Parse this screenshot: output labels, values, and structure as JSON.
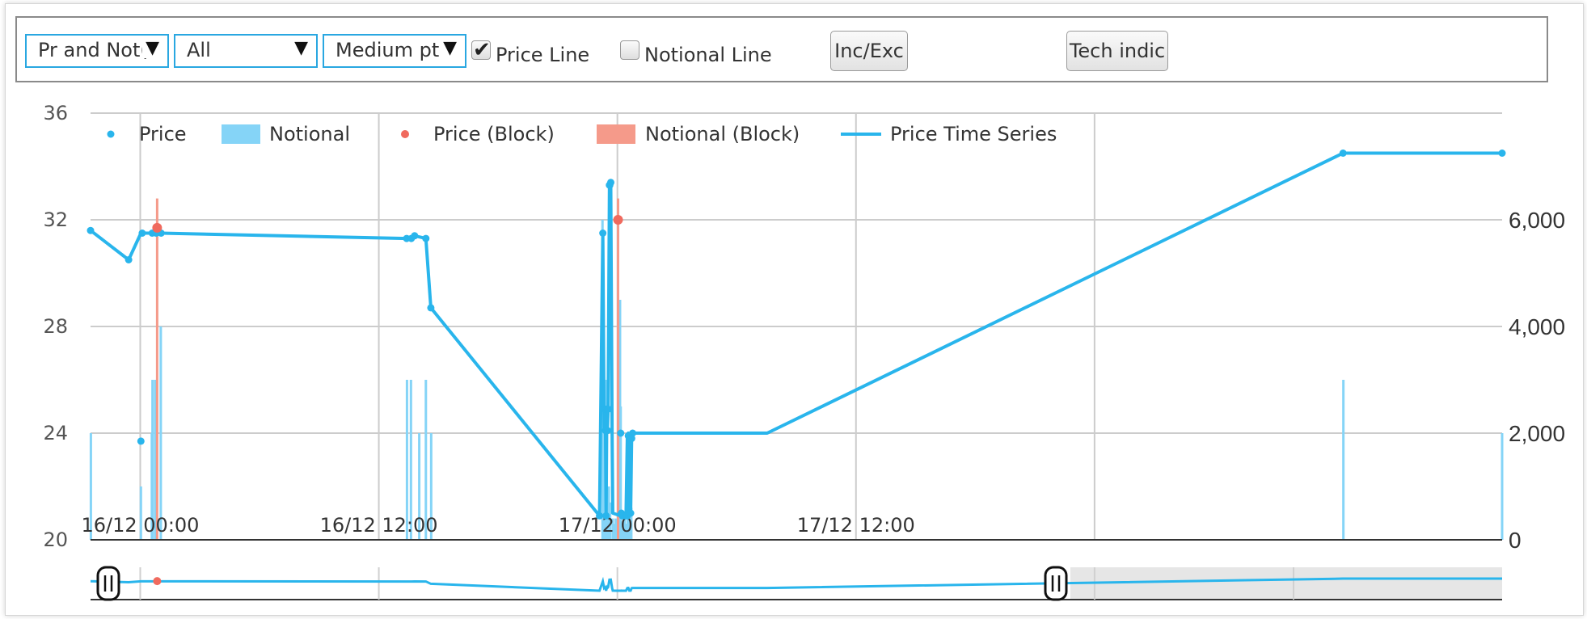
{
  "toolbar": {
    "dropdown_mode": "Pr and Not(l",
    "dropdown_filter": "All",
    "dropdown_points": "Medium pts",
    "price_line_label": "Price Line",
    "price_line_checked": true,
    "notional_line_label": "Notional Line",
    "notional_line_checked": false,
    "inc_exc_label": "Inc/Exc",
    "tech_indic_label": "Tech indic",
    "arrow_glyph": "▼",
    "check_glyph": "✔"
  },
  "colors": {
    "price": "#29b5ec",
    "notional": "#85d4f7",
    "price_block": "#f06a5e",
    "notional_block": "#f59a8a",
    "grid": "#cccccc"
  },
  "chart_data": {
    "type": "line",
    "title": "",
    "xlabel": "",
    "ylabel": "",
    "y_left": {
      "min": 20,
      "max": 36,
      "ticks": [
        "36",
        "32",
        "28",
        "24",
        "20"
      ]
    },
    "y_right": {
      "min": 0,
      "max": 8000,
      "ticks": [
        "6,000",
        "4,000",
        "2,000",
        "0"
      ]
    },
    "x_range": [
      "2015-12-15T21:30",
      "2015-12-18T20:30"
    ],
    "x_ticks": [
      {
        "t": "2015-12-16T00:00",
        "label": "16/12 00:00"
      },
      {
        "t": "2015-12-16T12:00",
        "label": "16/12 12:00"
      },
      {
        "t": "2015-12-17T00:00",
        "label": "17/12 00:00"
      },
      {
        "t": "2015-12-17T12:00",
        "label": "17/12 12:00"
      }
    ],
    "grid": true,
    "legend": {
      "position": "top-left",
      "entries": [
        "Price",
        "Notional",
        "Price (Block)",
        "Notional (Block)",
        "Price Time Series"
      ]
    },
    "series": [
      {
        "name": "Price Time Series",
        "kind": "line",
        "x": [
          "2015-12-15T21:30",
          "2015-12-15T23:25",
          "2015-12-16T00:02",
          "2015-12-16T00:06",
          "2015-12-16T00:36",
          "2015-12-16T00:48",
          "2015-12-16T00:51",
          "2015-12-16T01:03",
          "2015-12-16T13:24",
          "2015-12-16T13:38",
          "2015-12-16T13:48",
          "2015-12-16T14:22",
          "2015-12-16T14:37",
          "2015-12-16T23:06",
          "2015-12-16T23:16",
          "2015-12-16T23:20",
          "2015-12-16T23:22",
          "2015-12-16T23:24",
          "2015-12-16T23:26",
          "2015-12-16T23:28",
          "2015-12-16T23:30",
          "2015-12-16T23:32",
          "2015-12-16T23:36",
          "2015-12-16T23:37",
          "2015-12-16T23:40",
          "2015-12-16T23:44",
          "2015-12-16T23:46",
          "2015-12-17T00:10",
          "2015-12-17T00:12",
          "2015-12-17T00:15",
          "2015-12-17T00:25",
          "2015-12-17T00:26",
          "2015-12-17T00:30",
          "2015-12-17T00:33",
          "2015-12-17T00:36",
          "2015-12-17T00:40",
          "2015-12-17T00:43",
          "2015-12-17T00:46",
          "2015-12-17T07:32",
          "2015-12-18T12:30",
          "2015-12-18T20:30"
        ],
        "values": [
          31.6,
          30.5,
          31.5,
          31.5,
          31.5,
          31.5,
          31.5,
          31.5,
          31.3,
          31.3,
          31.4,
          31.3,
          28.7,
          20.9,
          31.5,
          24.1,
          24.9,
          24.1,
          20.9,
          24.9,
          24.1,
          24.9,
          33.3,
          33.3,
          33.4,
          24.0,
          21.0,
          20.9,
          21.0,
          20.9,
          20.9,
          20.9,
          23.9,
          24.0,
          21.0,
          21.0,
          23.8,
          24.0,
          24.0,
          34.5,
          34.5
        ]
      },
      {
        "name": "Price",
        "kind": "points",
        "x": [
          "2015-12-15T21:30",
          "2015-12-15T23:25",
          "2015-12-16T00:02",
          "2015-12-16T00:06",
          "2015-12-16T00:36",
          "2015-12-16T00:48",
          "2015-12-16T01:03",
          "2015-12-16T13:24",
          "2015-12-16T13:38",
          "2015-12-16T13:48",
          "2015-12-16T14:22",
          "2015-12-16T14:37",
          "2015-12-16T23:06",
          "2015-12-16T23:16",
          "2015-12-16T23:22",
          "2015-12-16T23:24",
          "2015-12-16T23:26",
          "2015-12-16T23:28",
          "2015-12-16T23:30",
          "2015-12-16T23:32",
          "2015-12-16T23:36",
          "2015-12-16T23:37",
          "2015-12-16T23:40",
          "2015-12-17T00:10",
          "2015-12-17T00:12",
          "2015-12-17T00:15",
          "2015-12-17T00:25",
          "2015-12-17T00:30",
          "2015-12-17T00:33",
          "2015-12-17T00:40",
          "2015-12-17T00:43",
          "2015-12-17T00:46",
          "2015-12-18T12:30",
          "2015-12-18T20:30"
        ],
        "values": [
          31.6,
          30.5,
          23.7,
          31.5,
          31.5,
          31.5,
          31.5,
          31.3,
          31.3,
          31.4,
          31.3,
          28.7,
          20.9,
          31.5,
          24.9,
          24.1,
          20.9,
          24.9,
          24.1,
          24.9,
          33.3,
          33.3,
          33.4,
          24.0,
          21.0,
          20.9,
          20.9,
          20.9,
          23.9,
          21.0,
          23.8,
          24.0,
          34.5,
          34.5
        ]
      },
      {
        "name": "Price (Block)",
        "kind": "points",
        "x": [
          "2015-12-16T00:51",
          "2015-12-17T00:02"
        ],
        "values": [
          31.7,
          32.0
        ]
      },
      {
        "name": "Notional",
        "kind": "bars",
        "x": [
          "2015-12-15T21:31",
          "2015-12-16T00:02",
          "2015-12-16T00:35",
          "2015-12-16T00:37",
          "2015-12-16T00:45",
          "2015-12-16T01:02",
          "2015-12-16T13:25",
          "2015-12-16T13:37",
          "2015-12-16T14:02",
          "2015-12-16T14:22",
          "2015-12-16T14:38",
          "2015-12-16T23:15",
          "2015-12-16T23:19",
          "2015-12-16T23:23",
          "2015-12-16T23:27",
          "2015-12-16T23:31",
          "2015-12-16T23:34",
          "2015-12-16T23:38",
          "2015-12-16T23:46",
          "2015-12-16T23:50",
          "2015-12-16T23:55",
          "2015-12-17T00:04",
          "2015-12-17T00:08",
          "2015-12-17T00:10",
          "2015-12-17T00:13",
          "2015-12-17T00:18",
          "2015-12-17T00:22",
          "2015-12-17T00:25",
          "2015-12-17T00:31",
          "2015-12-17T00:37",
          "2015-12-17T00:42",
          "2015-12-18T12:31",
          "2015-12-18T20:30"
        ],
        "values": [
          2000,
          1000,
          2000,
          3000,
          3000,
          4000,
          3000,
          3000,
          2000,
          3000,
          2000,
          6000,
          2500,
          2500,
          3000,
          600,
          1000,
          700,
          400,
          300,
          400,
          4000,
          4500,
          2500,
          200,
          300,
          500,
          300,
          400,
          1000,
          600,
          3000,
          2000
        ]
      },
      {
        "name": "Notional (Block)",
        "kind": "bars",
        "x": [
          "2015-12-16T00:51",
          "2015-12-17T00:02"
        ],
        "values": [
          6400,
          6400
        ]
      }
    ],
    "navigator": {
      "handles": [
        "left",
        "right"
      ],
      "handle_glyph": "||"
    }
  }
}
